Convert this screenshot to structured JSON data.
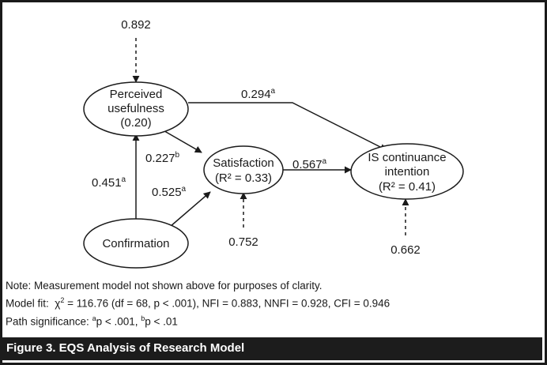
{
  "nodes": {
    "pu": {
      "lines": [
        "Perceived",
        "usefulness",
        "(0.20)"
      ]
    },
    "sat": {
      "lines": [
        "Satisfaction",
        "(R² = 0.33)"
      ]
    },
    "isc": {
      "lines": [
        "IS continuance",
        "intention",
        "(R² = 0.41)"
      ]
    },
    "conf": {
      "lines": [
        "Confirmation"
      ]
    }
  },
  "errors": {
    "pu": "0.892",
    "sat": "0.752",
    "isc": "0.662"
  },
  "paths": {
    "pu_isc": {
      "value": "0.294",
      "sig": "a"
    },
    "pu_sat": {
      "value": "0.227",
      "sig": "b"
    },
    "sat_isc": {
      "value": "0.567",
      "sig": "a"
    },
    "conf_pu": {
      "value": "0.451",
      "sig": "a"
    },
    "conf_sat": {
      "value": "0.525",
      "sig": "a"
    }
  },
  "notes": {
    "line1": "Note: Measurement model not shown above for purposes of clarity.",
    "line2_prefix": "Model fit:",
    "line2_chi": "χ",
    "line2_sup": "2",
    "line2_rest": " = 116.76 (df = 68, p < .001), NFI = 0.883, NNFI = 0.928, CFI = 0.946",
    "line3_prefix": "Path significance: ",
    "line3_a_sup": "a",
    "line3_a_text": "p < .001, ",
    "line3_b_sup": "b",
    "line3_b_text": "p < .01"
  },
  "caption": "Figure 3.  EQS Analysis of Research Model"
}
